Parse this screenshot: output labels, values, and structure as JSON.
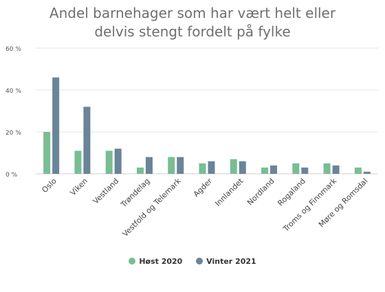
{
  "chart_data": {
    "type": "bar",
    "title_lines": [
      "Andel barnehager som har vært helt eller",
      "delvis stengt fordelt på fylke"
    ],
    "categories": [
      "Oslo",
      "Viken",
      "Vestland",
      "Trøndelag",
      "Vestfold og Telemark",
      "Agder",
      "Innlandet",
      "Nordland",
      "Rogaland",
      "Troms og Finnmark",
      "Møre og Romsdal"
    ],
    "series": [
      {
        "name": "Høst 2020",
        "color": "#79bd93",
        "values": [
          20,
          11,
          11,
          3,
          8,
          5,
          7,
          3,
          5,
          5,
          3
        ]
      },
      {
        "name": "Vinter 2021",
        "color": "#6a8499",
        "values": [
          46,
          32,
          12,
          8,
          8,
          6,
          6,
          4,
          3,
          4,
          1
        ]
      }
    ],
    "yticks": [
      0,
      20,
      40,
      60
    ],
    "ytick_labels": [
      "0 %",
      "20 %",
      "40 %",
      "60 %"
    ],
    "ylim": [
      0,
      60
    ],
    "grid": true,
    "legend_position": "bottom"
  }
}
